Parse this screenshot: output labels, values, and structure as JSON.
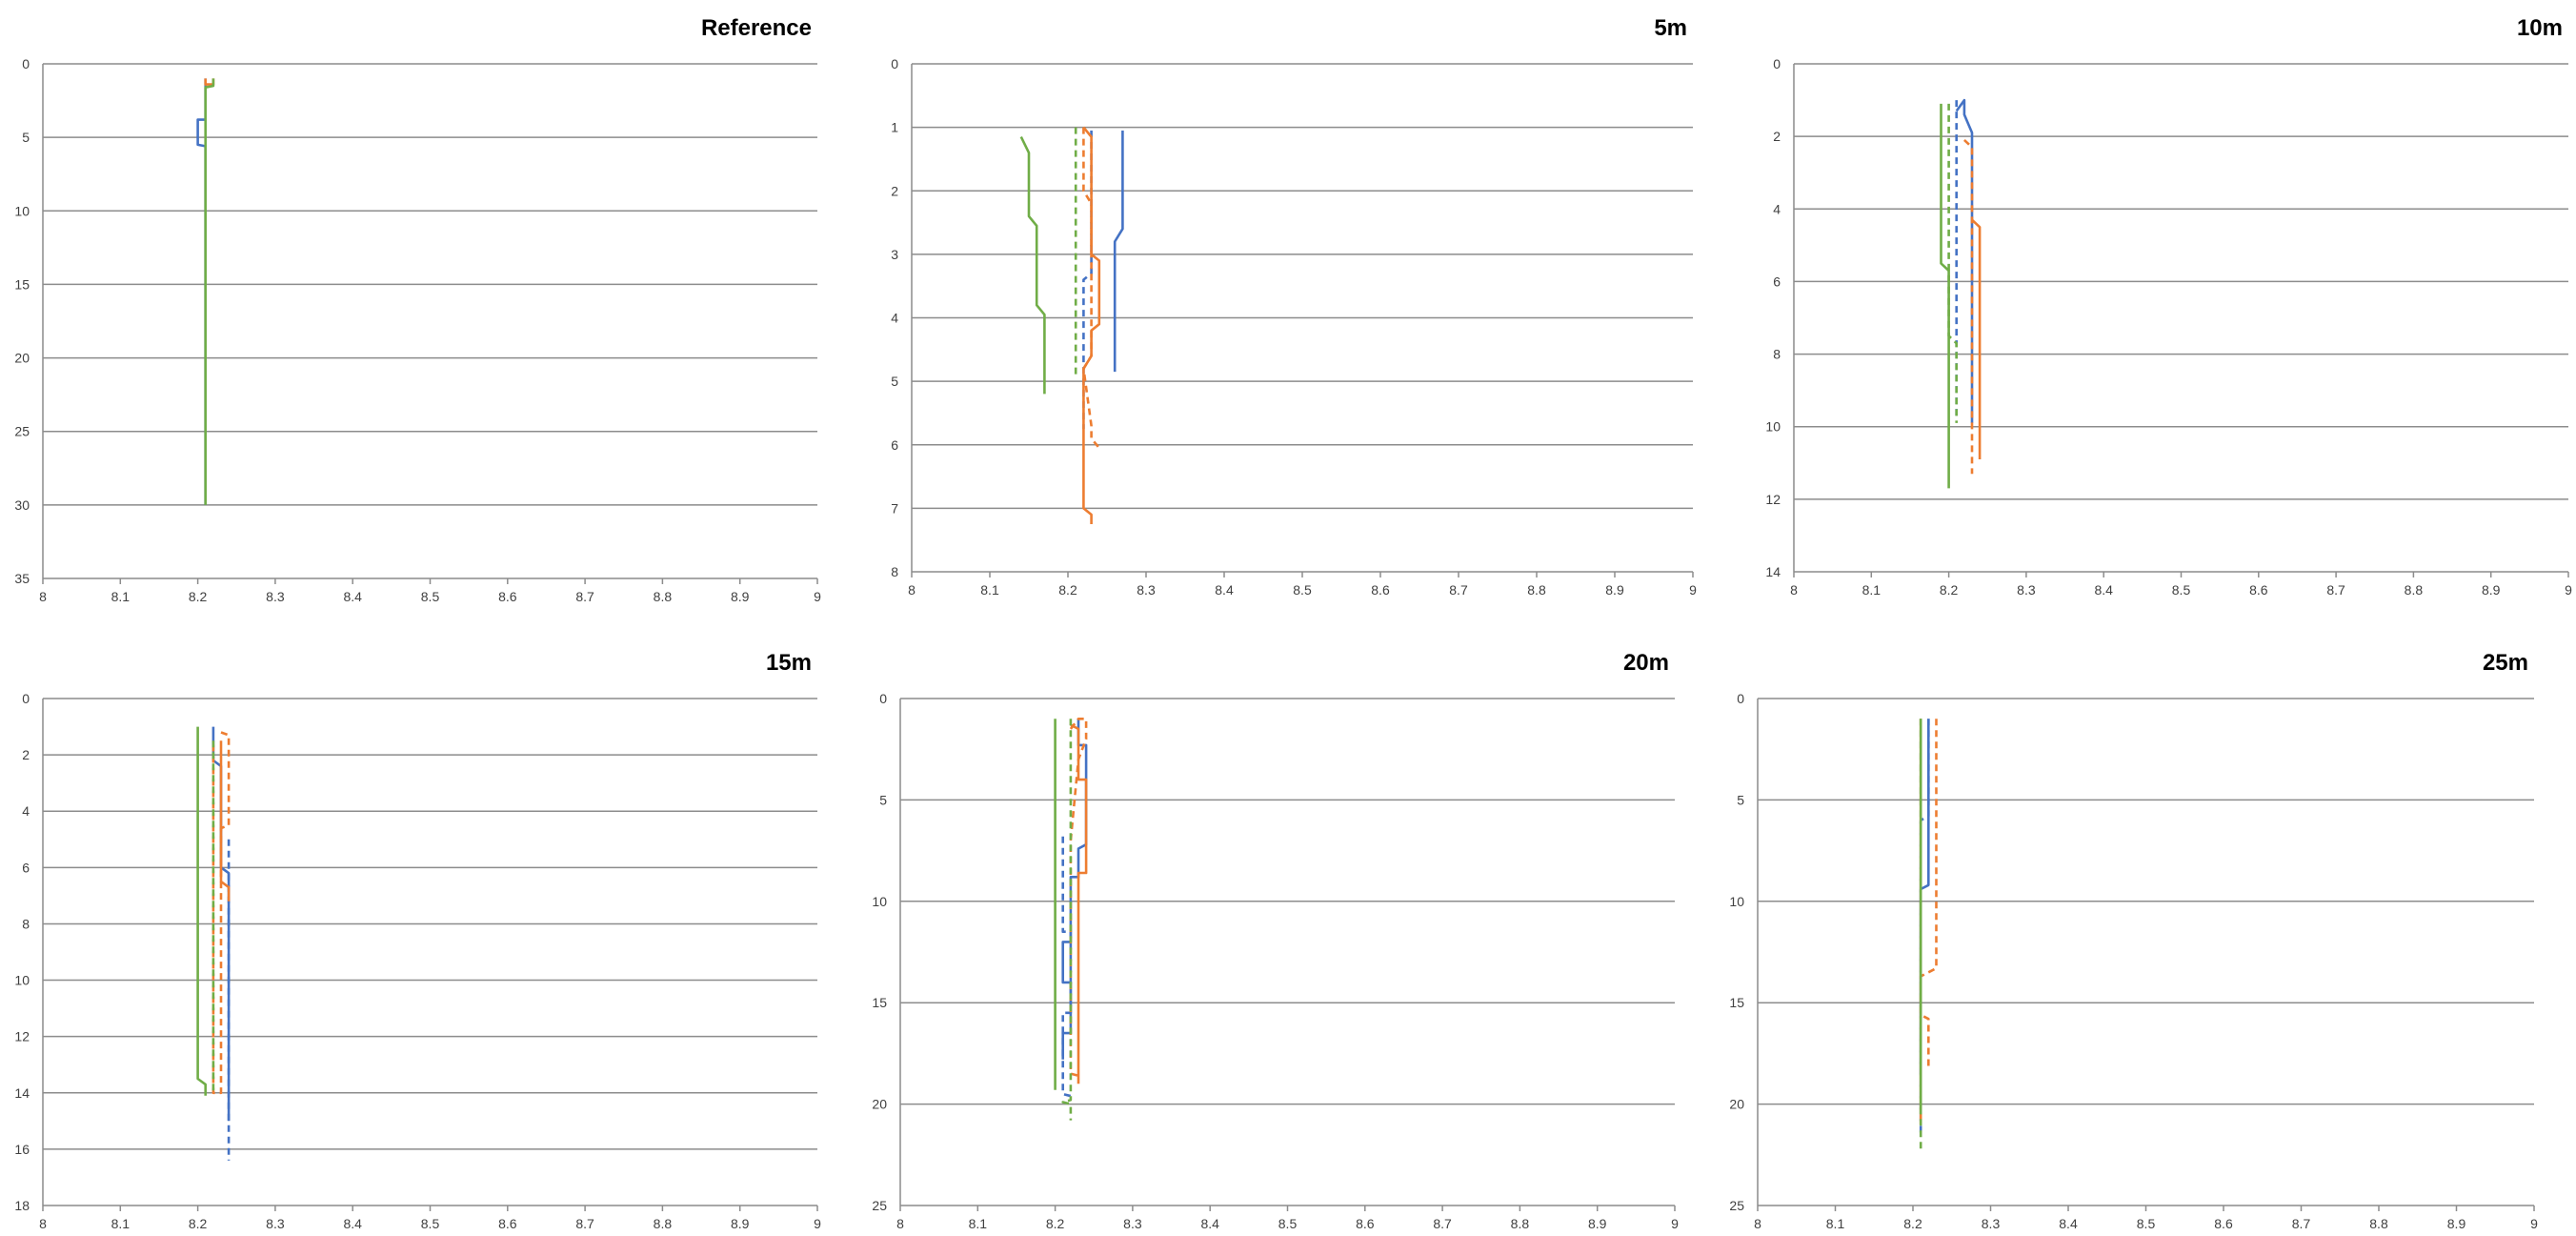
{
  "chart_data": [
    {
      "type": "line",
      "title": "Reference",
      "xlim": [
        8,
        9
      ],
      "ylim": [
        0,
        35
      ],
      "y_reversed": true,
      "xticks": [
        "8",
        "8.1",
        "8.2",
        "8.3",
        "8.4",
        "8.5",
        "8.6",
        "8.7",
        "8.8",
        "8.9",
        "9"
      ],
      "yticks": [
        "0",
        "5",
        "10",
        "15",
        "20",
        "25",
        "30",
        "35"
      ],
      "grid": "horizontal",
      "series": [
        {
          "color": "#4472C4",
          "dash": false,
          "points": [
            [
              8.21,
              1
            ],
            [
              8.21,
              3.8
            ],
            [
              8.2,
              3.8
            ],
            [
              8.2,
              5.5
            ],
            [
              8.21,
              5.6
            ],
            [
              8.21,
              30
            ]
          ]
        },
        {
          "color": "#ED7D31",
          "dash": false,
          "points": [
            [
              8.21,
              1
            ],
            [
              8.21,
              1.4
            ],
            [
              8.22,
              1.4
            ],
            [
              8.22,
              1
            ]
          ]
        },
        {
          "color": "#70AD47",
          "dash": false,
          "points": [
            [
              8.22,
              1
            ],
            [
              8.22,
              1.5
            ],
            [
              8.21,
              1.6
            ],
            [
              8.21,
              30
            ]
          ]
        }
      ]
    },
    {
      "type": "line",
      "title": "5m",
      "xlim": [
        8,
        9
      ],
      "ylim": [
        0,
        8
      ],
      "y_reversed": true,
      "xticks": [
        "8",
        "8.1",
        "8.2",
        "8.3",
        "8.4",
        "8.5",
        "8.6",
        "8.7",
        "8.8",
        "8.9",
        "9"
      ],
      "yticks": [
        "0",
        "1",
        "2",
        "3",
        "4",
        "5",
        "6",
        "7",
        "8"
      ],
      "grid": "horizontal",
      "series": [
        {
          "color": "#4472C4",
          "dash": false,
          "points": [
            [
              8.27,
              1.05
            ],
            [
              8.27,
              2.6
            ],
            [
              8.26,
              2.8
            ],
            [
              8.26,
              4.85
            ]
          ]
        },
        {
          "color": "#4472C4",
          "dash": true,
          "points": [
            [
              8.23,
              1.05
            ],
            [
              8.23,
              3.3
            ],
            [
              8.22,
              3.4
            ],
            [
              8.22,
              5.75
            ]
          ]
        },
        {
          "color": "#ED7D31",
          "dash": false,
          "points": [
            [
              8.22,
              1.0
            ],
            [
              8.23,
              1.15
            ],
            [
              8.23,
              3.0
            ],
            [
              8.24,
              3.1
            ],
            [
              8.24,
              4.1
            ],
            [
              8.23,
              4.2
            ],
            [
              8.23,
              4.6
            ],
            [
              8.22,
              4.8
            ],
            [
              8.22,
              7.0
            ],
            [
              8.23,
              7.1
            ],
            [
              8.23,
              7.25
            ]
          ]
        },
        {
          "color": "#ED7D31",
          "dash": true,
          "points": [
            [
              8.22,
              1.0
            ],
            [
              8.22,
              2.0
            ],
            [
              8.23,
              2.2
            ],
            [
              8.23,
              4.6
            ],
            [
              8.22,
              4.8
            ],
            [
              8.23,
              5.7
            ],
            [
              8.23,
              5.9
            ],
            [
              8.24,
              6.05
            ]
          ]
        },
        {
          "color": "#70AD47",
          "dash": false,
          "points": [
            [
              8.14,
              1.15
            ],
            [
              8.15,
              1.4
            ],
            [
              8.15,
              2.4
            ],
            [
              8.16,
              2.55
            ],
            [
              8.16,
              3.8
            ],
            [
              8.17,
              3.95
            ],
            [
              8.17,
              5.2
            ]
          ]
        },
        {
          "color": "#70AD47",
          "dash": true,
          "points": [
            [
              8.21,
              1.0
            ],
            [
              8.21,
              4.9
            ]
          ]
        }
      ]
    },
    {
      "type": "line",
      "title": "10m",
      "xlim": [
        8,
        9
      ],
      "ylim": [
        0,
        14
      ],
      "y_reversed": true,
      "xticks": [
        "8",
        "8.1",
        "8.2",
        "8.3",
        "8.4",
        "8.5",
        "8.6",
        "8.7",
        "8.8",
        "8.9",
        "9"
      ],
      "yticks": [
        "0",
        "2",
        "4",
        "6",
        "8",
        "10",
        "12",
        "14"
      ],
      "grid": "horizontal",
      "series": [
        {
          "color": "#4472C4",
          "dash": false,
          "points": [
            [
              8.21,
              1.3
            ],
            [
              8.22,
              1.0
            ],
            [
              8.22,
              1.4
            ],
            [
              8.23,
              1.9
            ],
            [
              8.23,
              9.9
            ]
          ]
        },
        {
          "color": "#4472C4",
          "dash": true,
          "points": [
            [
              8.21,
              1.0
            ],
            [
              8.21,
              9.8
            ]
          ]
        },
        {
          "color": "#ED7D31",
          "dash": false,
          "points": [
            [
              8.23,
              4.3
            ],
            [
              8.24,
              4.5
            ],
            [
              8.24,
              10.9
            ]
          ]
        },
        {
          "color": "#ED7D31",
          "dash": true,
          "points": [
            [
              8.22,
              2.1
            ],
            [
              8.23,
              2.3
            ],
            [
              8.23,
              11.3
            ]
          ]
        },
        {
          "color": "#70AD47",
          "dash": false,
          "points": [
            [
              8.19,
              1.1
            ],
            [
              8.19,
              5.5
            ],
            [
              8.2,
              5.7
            ],
            [
              8.2,
              11.7
            ]
          ]
        },
        {
          "color": "#70AD47",
          "dash": true,
          "points": [
            [
              8.2,
              1.1
            ],
            [
              8.2,
              7.5
            ],
            [
              8.21,
              7.7
            ],
            [
              8.21,
              9.9
            ]
          ]
        }
      ]
    },
    {
      "type": "line",
      "title": "15m",
      "xlim": [
        8,
        9
      ],
      "ylim": [
        0,
        18
      ],
      "y_reversed": true,
      "xticks": [
        "8",
        "8.1",
        "8.2",
        "8.3",
        "8.4",
        "8.5",
        "8.6",
        "8.7",
        "8.8",
        "8.9",
        "9"
      ],
      "yticks": [
        "0",
        "2",
        "4",
        "6",
        "8",
        "10",
        "12",
        "14",
        "16",
        "18"
      ],
      "grid": "horizontal",
      "series": [
        {
          "color": "#4472C4",
          "dash": false,
          "points": [
            [
              8.22,
              1.0
            ],
            [
              8.22,
              2.2
            ],
            [
              8.23,
              2.4
            ],
            [
              8.23,
              6.0
            ],
            [
              8.24,
              6.2
            ],
            [
              8.24,
              15.0
            ]
          ]
        },
        {
          "color": "#4472C4",
          "dash": true,
          "points": [
            [
              8.24,
              5.0
            ],
            [
              8.24,
              16.4
            ]
          ]
        },
        {
          "color": "#ED7D31",
          "dash": false,
          "points": [
            [
              8.23,
              1.5
            ],
            [
              8.23,
              6.5
            ],
            [
              8.24,
              6.7
            ],
            [
              8.24,
              7.2
            ]
          ]
        },
        {
          "color": "#ED7D31",
          "dash": true,
          "points": [
            [
              8.23,
              1.2
            ],
            [
              8.24,
              1.3
            ],
            [
              8.24,
              4.5
            ],
            [
              8.23,
              4.6
            ],
            [
              8.23,
              14.0
            ],
            [
              8.22,
              14.0
            ],
            [
              8.22,
              1.6
            ]
          ]
        },
        {
          "color": "#70AD47",
          "dash": false,
          "points": [
            [
              8.2,
              1.0
            ],
            [
              8.2,
              13.5
            ],
            [
              8.21,
              13.7
            ],
            [
              8.21,
              14.1
            ]
          ]
        },
        {
          "color": "#70AD47",
          "dash": true,
          "points": [
            [
              8.22,
              1.5
            ],
            [
              8.22,
              14.0
            ]
          ]
        }
      ]
    },
    {
      "type": "line",
      "title": "20m",
      "xlim": [
        8,
        9
      ],
      "ylim": [
        0,
        25
      ],
      "y_reversed": true,
      "xticks": [
        "8",
        "8.1",
        "8.2",
        "8.3",
        "8.4",
        "8.5",
        "8.6",
        "8.7",
        "8.8",
        "8.9",
        "9"
      ],
      "yticks": [
        "0",
        "5",
        "10",
        "15",
        "20",
        "25"
      ],
      "grid": "horizontal",
      "series": [
        {
          "color": "#4472C4",
          "dash": false,
          "points": [
            [
              8.23,
              1.0
            ],
            [
              8.23,
              2.3
            ],
            [
              8.24,
              2.3
            ],
            [
              8.24,
              7.2
            ],
            [
              8.23,
              7.4
            ],
            [
              8.23,
              8.8
            ],
            [
              8.22,
              8.8
            ],
            [
              8.22,
              12.0
            ],
            [
              8.21,
              12.0
            ],
            [
              8.21,
              14.0
            ],
            [
              8.22,
              14.0
            ],
            [
              8.22,
              16.5
            ],
            [
              8.21,
              16.5
            ],
            [
              8.21,
              17.8
            ]
          ]
        },
        {
          "color": "#4472C4",
          "dash": true,
          "points": [
            [
              8.21,
              6.8
            ],
            [
              8.21,
              11.5
            ],
            [
              8.22,
              11.5
            ],
            [
              8.22,
              15.5
            ],
            [
              8.21,
              15.5
            ],
            [
              8.21,
              19.5
            ],
            [
              8.22,
              19.6
            ]
          ]
        },
        {
          "color": "#ED7D31",
          "dash": false,
          "points": [
            [
              8.22,
              1.3
            ],
            [
              8.23,
              1.5
            ],
            [
              8.23,
              4.0
            ],
            [
              8.24,
              4.0
            ],
            [
              8.24,
              8.6
            ],
            [
              8.23,
              8.6
            ],
            [
              8.23,
              19.0
            ]
          ]
        },
        {
          "color": "#ED7D31",
          "dash": true,
          "points": [
            [
              8.22,
              1.5
            ],
            [
              8.23,
              1.0
            ],
            [
              8.24,
              1.0
            ],
            [
              8.24,
              2.0
            ],
            [
              8.23,
              3.0
            ],
            [
              8.22,
              7.0
            ],
            [
              8.22,
              18.5
            ],
            [
              8.23,
              18.6
            ]
          ]
        },
        {
          "color": "#70AD47",
          "dash": false,
          "points": [
            [
              8.2,
              1.0
            ],
            [
              8.2,
              19.3
            ]
          ]
        },
        {
          "color": "#70AD47",
          "dash": true,
          "points": [
            [
              8.22,
              1.0
            ],
            [
              8.22,
              19.8
            ],
            [
              8.21,
              19.9
            ],
            [
              8.22,
              20.0
            ],
            [
              8.22,
              20.8
            ]
          ]
        }
      ]
    },
    {
      "type": "line",
      "title": "25m",
      "xlim": [
        8,
        9
      ],
      "ylim": [
        0,
        25
      ],
      "y_reversed": true,
      "xticks": [
        "8",
        "8.1",
        "8.2",
        "8.3",
        "8.4",
        "8.5",
        "8.6",
        "8.7",
        "8.8",
        "8.9",
        "9"
      ],
      "yticks": [
        "0",
        "5",
        "10",
        "15",
        "20",
        "25"
      ],
      "grid": "horizontal",
      "series": [
        {
          "color": "#4472C4",
          "dash": false,
          "points": [
            [
              8.22,
              1.0
            ],
            [
              8.22,
              9.2
            ],
            [
              8.21,
              9.4
            ],
            [
              8.21,
              18.5
            ]
          ]
        },
        {
          "color": "#4472C4",
          "dash": true,
          "points": [
            [
              8.22,
              1.0
            ],
            [
              8.22,
              5.8
            ],
            [
              8.21,
              6.0
            ],
            [
              8.21,
              21.5
            ]
          ]
        },
        {
          "color": "#ED7D31",
          "dash": false,
          "points": [
            [
              8.21,
              1.0
            ],
            [
              8.21,
              21.0
            ]
          ]
        },
        {
          "color": "#ED7D31",
          "dash": true,
          "points": [
            [
              8.23,
              1.0
            ],
            [
              8.23,
              13.3
            ],
            [
              8.22,
              13.5
            ],
            [
              8.21,
              13.7
            ],
            [
              8.21,
              15.6
            ],
            [
              8.22,
              15.8
            ],
            [
              8.22,
              18.3
            ]
          ]
        },
        {
          "color": "#70AD47",
          "dash": false,
          "points": [
            [
              8.21,
              1.0
            ],
            [
              8.21,
              20.5
            ]
          ]
        },
        {
          "color": "#70AD47",
          "dash": true,
          "points": [
            [
              8.21,
              1.0
            ],
            [
              8.21,
              22.2
            ]
          ]
        }
      ]
    }
  ]
}
